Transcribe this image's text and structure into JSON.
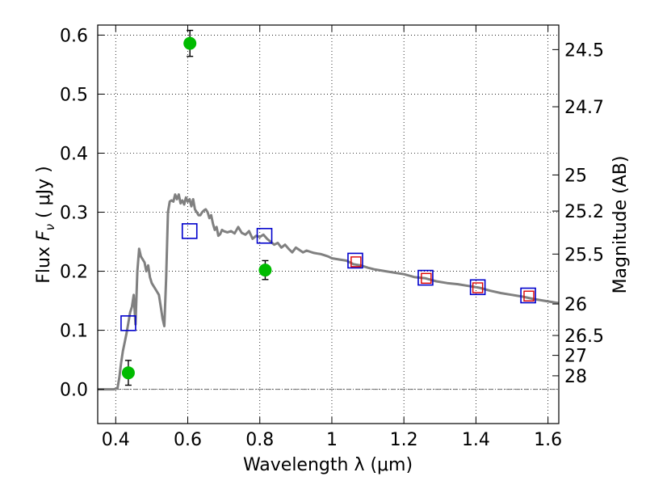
{
  "chart_data": {
    "type": "scatter",
    "xlabel": "Wavelength  λ (μm)",
    "ylabel_parts": {
      "left": "Flux",
      "mid": "F",
      "sub": "ν",
      "right": "( μJy )"
    },
    "ylabel_right": "Magnitude (AB)",
    "xlim": [
      0.35,
      1.63
    ],
    "ylim": [
      -0.058,
      0.617
    ],
    "grid": true,
    "x_ticks": [
      {
        "v": 0.4,
        "label": "0.4"
      },
      {
        "v": 0.6,
        "label": "0.6"
      },
      {
        "v": 0.8,
        "label": "0.8"
      },
      {
        "v": 1.0,
        "label": "1"
      },
      {
        "v": 1.2,
        "label": "1.2"
      },
      {
        "v": 1.4,
        "label": "1.4"
      },
      {
        "v": 1.6,
        "label": "1.6"
      }
    ],
    "y_ticks": [
      {
        "v": 0.0,
        "label": "0.0"
      },
      {
        "v": 0.1,
        "label": "0.1"
      },
      {
        "v": 0.2,
        "label": "0.2"
      },
      {
        "v": 0.3,
        "label": "0.3"
      },
      {
        "v": 0.4,
        "label": "0.4"
      },
      {
        "v": 0.5,
        "label": "0.5"
      },
      {
        "v": 0.6,
        "label": "0.6"
      }
    ],
    "magnitude_ticks": [
      {
        "mag": 24.5,
        "label": "24.5"
      },
      {
        "mag": 24.7,
        "label": "24.7"
      },
      {
        "mag": 25,
        "label": "25"
      },
      {
        "mag": 25.2,
        "label": "25.2"
      },
      {
        "mag": 25.5,
        "label": "25.5"
      },
      {
        "mag": 26,
        "label": "26"
      },
      {
        "mag": 26.5,
        "label": "26.5"
      },
      {
        "mag": 27,
        "label": "27"
      },
      {
        "mag": 28,
        "label": "28"
      }
    ],
    "model_sed": {
      "color": "#808080",
      "points": [
        [
          0.35,
          0.0
        ],
        [
          0.395,
          0.0
        ],
        [
          0.405,
          0.002
        ],
        [
          0.41,
          0.02
        ],
        [
          0.415,
          0.045
        ],
        [
          0.42,
          0.065
        ],
        [
          0.425,
          0.08
        ],
        [
          0.43,
          0.095
        ],
        [
          0.435,
          0.112
        ],
        [
          0.44,
          0.13
        ],
        [
          0.445,
          0.14
        ],
        [
          0.45,
          0.16
        ],
        [
          0.455,
          0.11
        ],
        [
          0.46,
          0.2
        ],
        [
          0.465,
          0.238
        ],
        [
          0.47,
          0.225
        ],
        [
          0.475,
          0.22
        ],
        [
          0.48,
          0.215
        ],
        [
          0.485,
          0.2
        ],
        [
          0.49,
          0.21
        ],
        [
          0.495,
          0.19
        ],
        [
          0.5,
          0.18
        ],
        [
          0.505,
          0.175
        ],
        [
          0.51,
          0.17
        ],
        [
          0.515,
          0.165
        ],
        [
          0.52,
          0.16
        ],
        [
          0.525,
          0.14
        ],
        [
          0.53,
          0.12
        ],
        [
          0.535,
          0.107
        ],
        [
          0.54,
          0.19
        ],
        [
          0.545,
          0.3
        ],
        [
          0.55,
          0.318
        ],
        [
          0.555,
          0.32
        ],
        [
          0.56,
          0.318
        ],
        [
          0.565,
          0.33
        ],
        [
          0.57,
          0.322
        ],
        [
          0.575,
          0.33
        ],
        [
          0.58,
          0.315
        ],
        [
          0.585,
          0.32
        ],
        [
          0.59,
          0.313
        ],
        [
          0.595,
          0.325
        ],
        [
          0.6,
          0.318
        ],
        [
          0.605,
          0.322
        ],
        [
          0.61,
          0.31
        ],
        [
          0.615,
          0.322
        ],
        [
          0.62,
          0.305
        ],
        [
          0.625,
          0.3
        ],
        [
          0.63,
          0.295
        ],
        [
          0.635,
          0.295
        ],
        [
          0.64,
          0.3
        ],
        [
          0.645,
          0.303
        ],
        [
          0.65,
          0.305
        ],
        [
          0.655,
          0.3
        ],
        [
          0.66,
          0.29
        ],
        [
          0.665,
          0.295
        ],
        [
          0.67,
          0.28
        ],
        [
          0.675,
          0.27
        ],
        [
          0.68,
          0.275
        ],
        [
          0.685,
          0.26
        ],
        [
          0.69,
          0.263
        ],
        [
          0.695,
          0.27
        ],
        [
          0.7,
          0.268
        ],
        [
          0.71,
          0.266
        ],
        [
          0.72,
          0.268
        ],
        [
          0.73,
          0.264
        ],
        [
          0.74,
          0.275
        ],
        [
          0.75,
          0.265
        ],
        [
          0.76,
          0.262
        ],
        [
          0.77,
          0.268
        ],
        [
          0.78,
          0.255
        ],
        [
          0.79,
          0.26
        ],
        [
          0.8,
          0.258
        ],
        [
          0.81,
          0.262
        ],
        [
          0.82,
          0.255
        ],
        [
          0.83,
          0.25
        ],
        [
          0.84,
          0.245
        ],
        [
          0.85,
          0.248
        ],
        [
          0.86,
          0.24
        ],
        [
          0.87,
          0.245
        ],
        [
          0.88,
          0.238
        ],
        [
          0.89,
          0.232
        ],
        [
          0.9,
          0.24
        ],
        [
          0.91,
          0.236
        ],
        [
          0.92,
          0.232
        ],
        [
          0.93,
          0.235
        ],
        [
          0.94,
          0.233
        ],
        [
          0.95,
          0.231
        ],
        [
          0.96,
          0.23
        ],
        [
          0.97,
          0.229
        ],
        [
          0.98,
          0.227
        ],
        [
          0.99,
          0.225
        ],
        [
          1.0,
          0.222
        ],
        [
          1.02,
          0.22
        ],
        [
          1.04,
          0.218
        ],
        [
          1.06,
          0.212
        ],
        [
          1.08,
          0.21
        ],
        [
          1.1,
          0.206
        ],
        [
          1.12,
          0.203
        ],
        [
          1.15,
          0.2
        ],
        [
          1.18,
          0.197
        ],
        [
          1.2,
          0.195
        ],
        [
          1.23,
          0.19
        ],
        [
          1.26,
          0.188
        ],
        [
          1.29,
          0.183
        ],
        [
          1.32,
          0.18
        ],
        [
          1.35,
          0.178
        ],
        [
          1.38,
          0.175
        ],
        [
          1.41,
          0.172
        ],
        [
          1.44,
          0.167
        ],
        [
          1.47,
          0.163
        ],
        [
          1.5,
          0.16
        ],
        [
          1.53,
          0.157
        ],
        [
          1.56,
          0.153
        ],
        [
          1.59,
          0.15
        ],
        [
          1.63,
          0.146
        ]
      ]
    },
    "model_bands": {
      "color": "#0000cc",
      "points": [
        {
          "x": 0.435,
          "y": 0.112
        },
        {
          "x": 0.605,
          "y": 0.268
        },
        {
          "x": 0.813,
          "y": 0.26
        },
        {
          "x": 1.065,
          "y": 0.218
        },
        {
          "x": 1.26,
          "y": 0.189
        },
        {
          "x": 1.405,
          "y": 0.173
        },
        {
          "x": 1.545,
          "y": 0.159
        }
      ]
    },
    "observed_nir": {
      "color": "#dd0000",
      "points": [
        {
          "x": 1.067,
          "y": 0.216
        },
        {
          "x": 1.262,
          "y": 0.188
        },
        {
          "x": 1.405,
          "y": 0.172
        },
        {
          "x": 1.547,
          "y": 0.158
        }
      ]
    },
    "observed_optical": {
      "color": "#00bb00",
      "points": [
        {
          "x": 0.435,
          "y": 0.028,
          "err": 0.021
        },
        {
          "x": 0.606,
          "y": 0.586,
          "err": 0.022
        },
        {
          "x": 0.815,
          "y": 0.202,
          "err": 0.016
        }
      ]
    }
  }
}
